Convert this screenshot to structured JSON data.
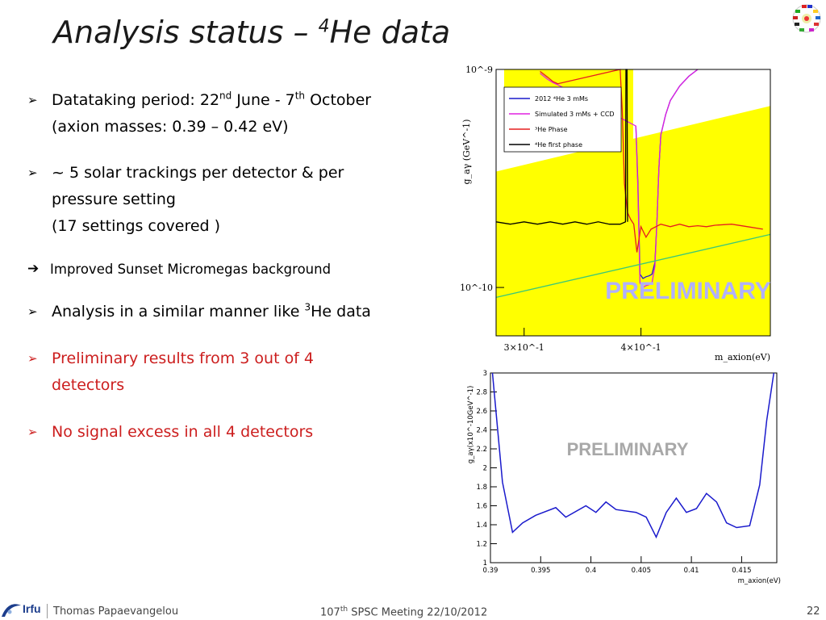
{
  "title": {
    "main": "Analysis status – ",
    "sup": "4",
    "rest": "He data"
  },
  "bullets": [
    {
      "marker": "➢",
      "pre": "Datataking period: 22",
      "sup1": "nd",
      "mid": " June - 7",
      "sup2": "th",
      "post": " October",
      "line2": "(axion masses: 0.39 – 0.42 eV)"
    },
    {
      "marker": "➢",
      "line1": "~ 5 solar trackings per detector & per",
      "line2": "pressure setting",
      "line3": "(17 settings covered )"
    },
    {
      "marker": "➔",
      "text": "Improved Sunset Micromegas background"
    },
    {
      "marker": "➢",
      "pre": "Analysis in a similar manner like ",
      "sup": "3",
      "post": "He data"
    },
    {
      "marker": "➢",
      "line1": "Preliminary results from 3 out of 4",
      "line2": "detectors"
    },
    {
      "marker": "➢",
      "text": "No signal excess in all 4 detectors"
    }
  ],
  "colors": {
    "red_text": "#cc1e1e",
    "exclusion_fill": "#ffff00",
    "blue": "#1a1acc",
    "magenta": "#e020e0",
    "red": "#e61e1e",
    "black": "#000000",
    "green": "#3cc878"
  },
  "chart_data": [
    {
      "type": "line",
      "title": "",
      "xlabel": "m_axion(eV)",
      "ylabel": "g_aγ (GeV^-1)",
      "xscale": "log",
      "yscale": "log",
      "xlim": [
        0.28,
        0.55
      ],
      "ylim": [
        6e-11,
        1e-09
      ],
      "x_tick_labels": [
        "3×10^-1",
        "4×10^-1"
      ],
      "y_tick_labels": [
        "10^-9",
        "10^-10"
      ],
      "watermark": "PRELIMINARY",
      "legend": {
        "placement": "top-left",
        "entries": [
          {
            "label": "2012 ⁴He 3 mMs",
            "color": "blue"
          },
          {
            "label": "Simulated 3 mMs + CCD",
            "color": "magenta"
          },
          {
            "label": "³He Phase",
            "color": "red"
          },
          {
            "label": "⁴He first phase",
            "color": "black"
          }
        ]
      },
      "series": [
        {
          "name": "2012 ⁴He 3 mMs",
          "color": "#1a1acc",
          "x": [
            0.395,
            0.397,
            0.399,
            0.402,
            0.405,
            0.408,
            0.411,
            0.414,
            0.416,
            0.418,
            0.42,
            0.425,
            0.43,
            0.44,
            0.45,
            0.46
          ],
          "y": [
            5.5e-10,
            3e-10,
            1.15e-10,
            1.1e-10,
            1.12e-10,
            1.13e-10,
            1.15e-10,
            1.3e-10,
            2e-10,
            3.5e-10,
            5e-10,
            6.2e-10,
            7.2e-10,
            8.4e-10,
            9.3e-10,
            1e-09
          ]
        },
        {
          "name": "Simulated 3 mMs + CCD",
          "color": "#e020e0",
          "x": [
            0.312,
            0.318,
            0.322,
            0.326,
            0.395,
            0.397,
            0.399,
            0.402,
            0.405,
            0.408,
            0.411,
            0.414,
            0.416,
            0.418,
            0.42,
            0.425,
            0.43,
            0.44,
            0.45,
            0.46
          ],
          "y": [
            9.6e-10,
            9e-10,
            8.7e-10,
            8.5e-10,
            5.5e-10,
            2.8e-10,
            1.05e-10,
            1e-10,
            1.02e-10,
            1.03e-10,
            1.05e-10,
            1.25e-10,
            2e-10,
            3.5e-10,
            5e-10,
            6.2e-10,
            7.2e-10,
            8.4e-10,
            9.3e-10,
            1e-09
          ]
        },
        {
          "name": "³He Phase",
          "color": "#e61e1e",
          "x": [
            0.312,
            0.318,
            0.322,
            0.326,
            0.38,
            0.382,
            0.384,
            0.387,
            0.39,
            0.393,
            0.396,
            0.4,
            0.405,
            0.41,
            0.42,
            0.43,
            0.44,
            0.45,
            0.46,
            0.47,
            0.48,
            0.5,
            0.52,
            0.54
          ],
          "y": [
            9.8e-10,
            9.2e-10,
            8.8e-10,
            8.6e-10,
            1e-09,
            6.5e-10,
            3e-10,
            2.2e-10,
            2.05e-10,
            1.95e-10,
            1.45e-10,
            1.9e-10,
            1.7e-10,
            1.85e-10,
            1.95e-10,
            1.9e-10,
            1.95e-10,
            1.9e-10,
            1.92e-10,
            1.9e-10,
            1.93e-10,
            1.95e-10,
            1.9e-10,
            1.85e-10
          ]
        },
        {
          "name": "⁴He first phase",
          "color": "#000000",
          "x": [
            0.28,
            0.29,
            0.3,
            0.31,
            0.32,
            0.33,
            0.34,
            0.35,
            0.36,
            0.37,
            0.38,
            0.385,
            0.3855,
            0.3865,
            0.387
          ],
          "y": [
            2e-10,
            1.95e-10,
            2e-10,
            1.95e-10,
            2e-10,
            1.95e-10,
            2e-10,
            1.95e-10,
            2e-10,
            1.95e-10,
            1.95e-10,
            2e-10,
            1e-09,
            1e-09,
            2e-10
          ]
        },
        {
          "name": "",
          "color": "#3cc878",
          "x": [
            0.28,
            0.55
          ],
          "y": [
            9e-11,
            1.75e-10
          ]
        }
      ]
    },
    {
      "type": "line",
      "title": "",
      "xlabel": "m_axion(eV)",
      "ylabel": "g_aγ(x10^-10GeV^-1)",
      "xlim": [
        0.39,
        0.4185
      ],
      "ylim": [
        1,
        3
      ],
      "x_ticks": [
        "0.39",
        "0.395",
        "0.4",
        "0.405",
        "0.41",
        "0.415"
      ],
      "y_ticks": [
        "1",
        "1.2",
        "1.4",
        "1.6",
        "1.8",
        "2",
        "2.2",
        "2.4",
        "2.6",
        "2.8",
        "3"
      ],
      "watermark": "PRELIMINARY",
      "series": [
        {
          "name": "",
          "color": "#1a1acc",
          "x": [
            0.3902,
            0.3912,
            0.3922,
            0.3932,
            0.3945,
            0.3965,
            0.3975,
            0.3995,
            0.4005,
            0.4015,
            0.4025,
            0.4045,
            0.4055,
            0.4065,
            0.4075,
            0.4085,
            0.4095,
            0.4105,
            0.4115,
            0.4125,
            0.4135,
            0.4145,
            0.4158,
            0.4168,
            0.4175,
            0.4182
          ],
          "y": [
            3.0,
            1.85,
            1.32,
            1.42,
            1.5,
            1.58,
            1.48,
            1.6,
            1.53,
            1.64,
            1.56,
            1.53,
            1.48,
            1.27,
            1.53,
            1.68,
            1.53,
            1.57,
            1.73,
            1.64,
            1.42,
            1.37,
            1.39,
            1.82,
            2.5,
            3.0
          ]
        }
      ]
    }
  ],
  "footer": {
    "logo": "Irfu",
    "author": "Thomas Papaevangelou",
    "meeting_num": "107",
    "meeting_sup": "th",
    "meeting_rest": " SPSC Meeting   22/10/2012",
    "page": "22"
  }
}
